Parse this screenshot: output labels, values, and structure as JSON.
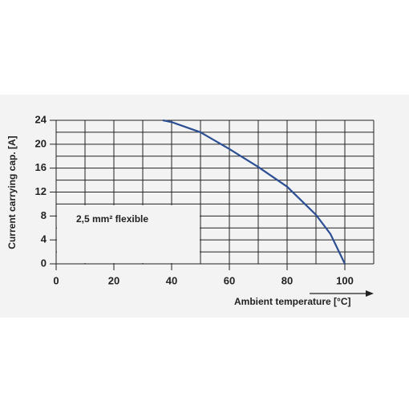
{
  "chart_data": {
    "type": "line",
    "x_label": "Ambient temperature [°C]",
    "y_label": "Current carrying cap. [A]",
    "annotation": "2,5 mm² flexible",
    "x": [
      37,
      40,
      50,
      60,
      70,
      80,
      90,
      95,
      100
    ],
    "series": [
      {
        "color": "#2c4f94",
        "values": [
          24,
          23.7,
          22,
          19.2,
          16.2,
          12.9,
          8.2,
          5,
          0
        ]
      }
    ],
    "xlim": [
      0,
      110
    ],
    "xticks": [
      0,
      20,
      40,
      60,
      80,
      100
    ],
    "ylim": [
      0,
      24
    ],
    "yticks": [
      0,
      4,
      8,
      12,
      16,
      20,
      24
    ],
    "grid": true
  }
}
